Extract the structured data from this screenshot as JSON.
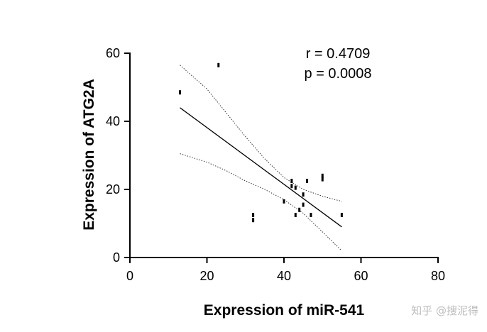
{
  "chart_data": {
    "type": "scatter",
    "title": "",
    "xlabel": "Expression of miR-541",
    "ylabel": "Expression of ATG2A",
    "xlim": [
      0,
      80
    ],
    "ylim": [
      0,
      60
    ],
    "xticks": [
      0,
      20,
      40,
      60,
      80
    ],
    "yticks": [
      0,
      20,
      40,
      60
    ],
    "grid": false,
    "points": [
      {
        "x": 13,
        "y": 48.5
      },
      {
        "x": 23,
        "y": 56.5
      },
      {
        "x": 32,
        "y": 11
      },
      {
        "x": 32,
        "y": 12.5
      },
      {
        "x": 40,
        "y": 16.5
      },
      {
        "x": 42,
        "y": 21
      },
      {
        "x": 42,
        "y": 22.5
      },
      {
        "x": 43,
        "y": 20.5
      },
      {
        "x": 43,
        "y": 12.5
      },
      {
        "x": 44,
        "y": 14
      },
      {
        "x": 45,
        "y": 15.5
      },
      {
        "x": 45,
        "y": 18.5
      },
      {
        "x": 46,
        "y": 22.5
      },
      {
        "x": 47,
        "y": 12.5
      },
      {
        "x": 50,
        "y": 23
      },
      {
        "x": 50,
        "y": 24
      },
      {
        "x": 55,
        "y": 12.5
      }
    ],
    "regression": {
      "x": [
        13,
        55
      ],
      "y": [
        44,
        9
      ]
    },
    "ci_upper": {
      "x": [
        13,
        20,
        25,
        30,
        35,
        40,
        45,
        50,
        55
      ],
      "y": [
        56.5,
        49.5,
        42.5,
        35.5,
        29,
        23.5,
        20,
        18,
        16.5
      ]
    },
    "ci_lower": {
      "x": [
        13,
        20,
        25,
        30,
        35,
        40,
        45,
        50,
        55
      ],
      "y": [
        30.5,
        28,
        25.5,
        22.5,
        20,
        17,
        13,
        7.5,
        2
      ]
    },
    "annotations": {
      "r_text": "r = 0.4709",
      "p_text": "p = 0.0008"
    }
  },
  "watermark": "知乎 @搜泥得"
}
